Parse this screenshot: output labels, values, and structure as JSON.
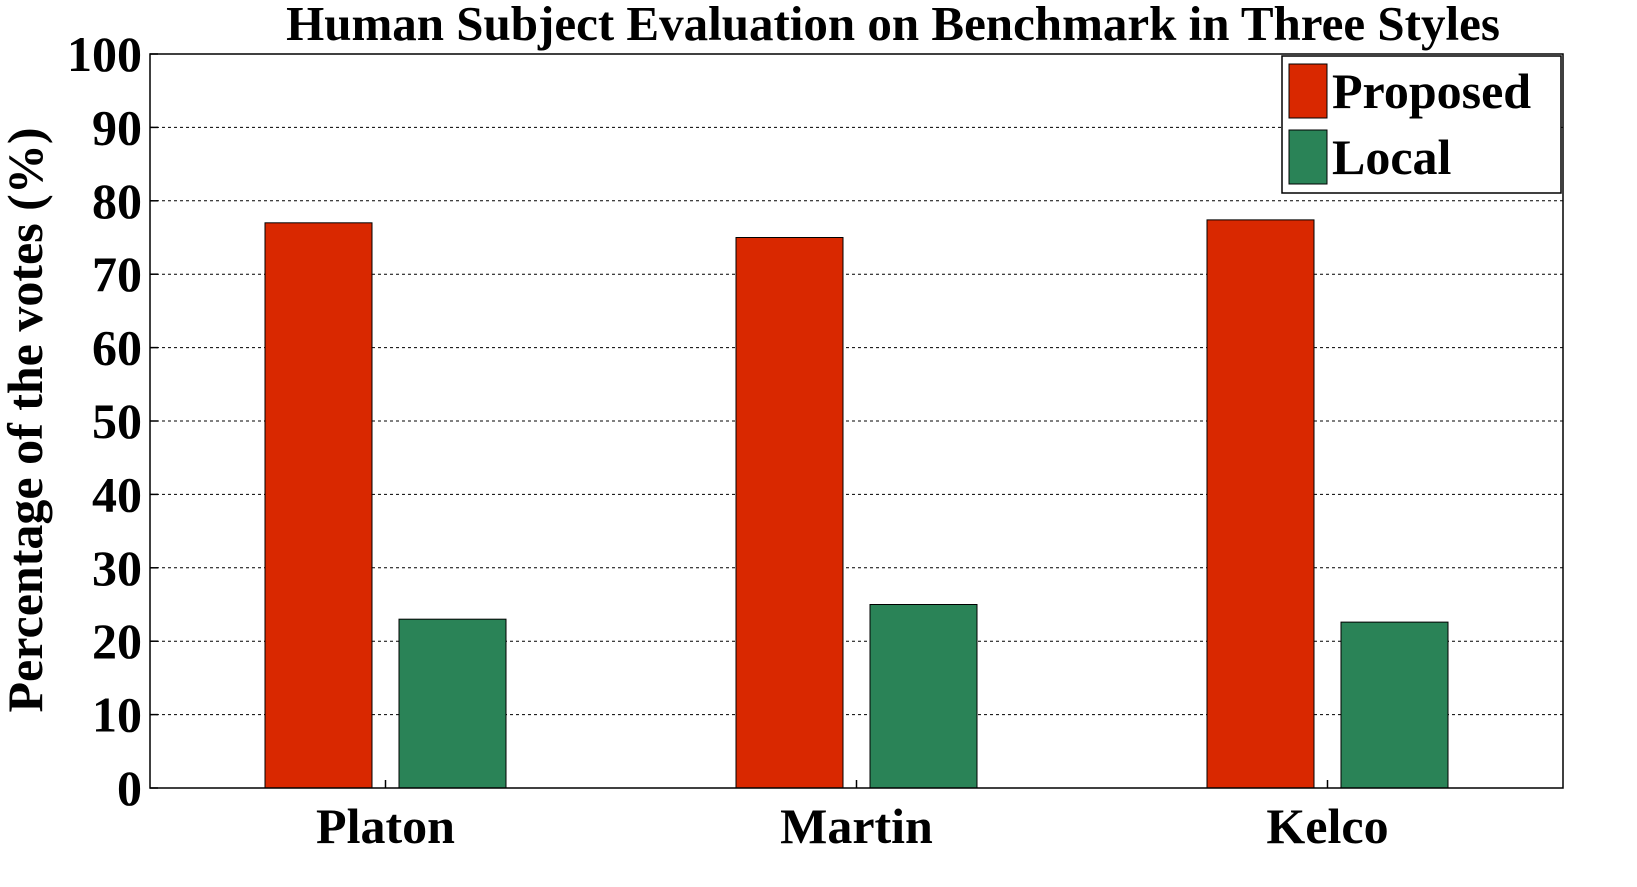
{
  "chart_data": {
    "type": "bar",
    "title": "Human Subject Evaluation on Benchmark in Three Styles",
    "xlabel": "",
    "ylabel": "Percentage of the votes (%)",
    "categories": [
      "Platon",
      "Martin",
      "Kelco"
    ],
    "series": [
      {
        "name": "Proposed",
        "values": [
          77,
          75,
          77.4
        ],
        "color": "#d92800"
      },
      {
        "name": "Local",
        "values": [
          23,
          25,
          22.6
        ],
        "color": "#2a8357"
      }
    ],
    "ylim": [
      0,
      100
    ],
    "yticks": [
      "0",
      "10",
      "20",
      "30",
      "40",
      "50",
      "60",
      "70",
      "80",
      "90",
      "100"
    ],
    "grid": true,
    "legend_position": "top-right"
  }
}
